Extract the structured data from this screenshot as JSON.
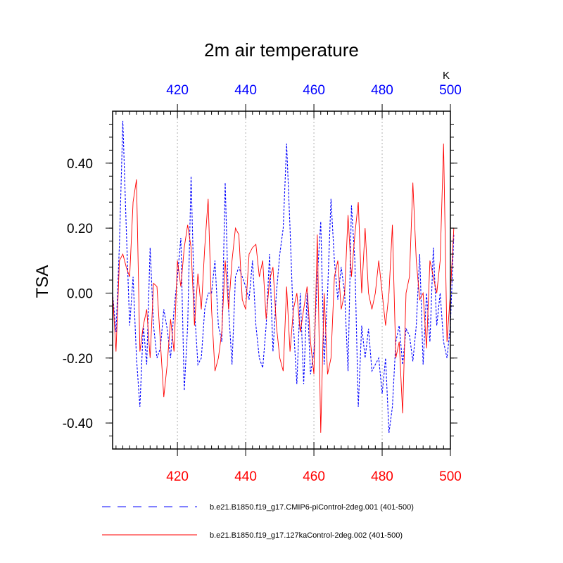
{
  "chart_data": {
    "type": "line",
    "title": "2m air temperature",
    "ylabel": "TSA",
    "units": "K",
    "xlim": [
      401,
      500
    ],
    "ylim": [
      -0.48,
      0.56
    ],
    "x_start": 401,
    "x_ticks": [
      420,
      440,
      460,
      480,
      500
    ],
    "x_tick_labels": [
      "420",
      "440",
      "460",
      "480",
      "500"
    ],
    "y_ticks": [
      -0.4,
      -0.2,
      0.0,
      0.2,
      0.4
    ],
    "y_tick_labels": [
      "-0.40",
      "-0.20",
      "0.00",
      "0.20",
      "0.40"
    ],
    "top_axis_color": "#0000ff",
    "bottom_axis_color": "#ff0000",
    "grid_color": "#b0b0b0",
    "series": [
      {
        "name": "b.e21.B1850.f19_g17.CMIP6-piControl-2deg.001 (401-500)",
        "color": "#0000ff",
        "dash": "dashed",
        "values": [
          0.0,
          -0.12,
          0.15,
          0.53,
          0.2,
          -0.1,
          0.05,
          -0.2,
          -0.35,
          -0.1,
          -0.22,
          0.14,
          -0.1,
          -0.2,
          -0.17,
          -0.05,
          -0.11,
          -0.2,
          -0.05,
          0.05,
          0.17,
          -0.3,
          -0.1,
          0.36,
          -0.05,
          -0.22,
          -0.2,
          -0.05,
          0.0,
          0.0,
          0.1,
          -0.1,
          -0.15,
          0.34,
          -0.05,
          -0.22,
          0.05,
          0.08,
          0.05,
          0.02,
          -0.02,
          0.1,
          -0.1,
          -0.2,
          -0.23,
          -0.1,
          0.12,
          -0.18,
          0.0,
          0.12,
          0.2,
          0.46,
          0.2,
          -0.1,
          -0.28,
          0.0,
          -0.28,
          0.0,
          -0.25,
          -0.18,
          0.05,
          0.22,
          -0.22,
          0.0,
          0.29,
          0.1,
          -0.02,
          0.08,
          0.0,
          -0.24,
          0.27,
          0.1,
          -0.35,
          -0.1,
          -0.2,
          -0.11,
          -0.24,
          -0.22,
          -0.2,
          -0.31,
          -0.2,
          -0.43,
          -0.35,
          -0.15,
          -0.1,
          -0.22,
          -0.11,
          -0.13,
          -0.21,
          -0.1,
          0.12,
          -0.22,
          0.0,
          -0.15,
          0.14,
          -0.1,
          0.0,
          -0.15,
          -0.2,
          -0.1,
          0.18
        ]
      },
      {
        "name": "b.e21.B1850.f19_g17.127kaControl-2deg.002 (401-500)",
        "color": "#ff0000",
        "dash": "solid",
        "values": [
          0.0,
          -0.18,
          0.1,
          0.12,
          0.08,
          0.05,
          0.28,
          0.35,
          -0.18,
          -0.1,
          -0.05,
          -0.2,
          0.03,
          0.02,
          -0.15,
          -0.32,
          -0.22,
          -0.08,
          -0.18,
          0.1,
          0.02,
          0.14,
          0.21,
          0.14,
          -0.1,
          0.06,
          -0.05,
          0.14,
          0.29,
          -0.05,
          -0.24,
          -0.2,
          -0.12,
          0.1,
          -0.05,
          0.1,
          0.2,
          0.18,
          -0.02,
          -0.05,
          0.12,
          0.14,
          0.15,
          0.05,
          0.1,
          -0.08,
          0.04,
          0.08,
          -0.1,
          -0.2,
          -0.24,
          0.02,
          -0.18,
          -0.05,
          0.0,
          -0.12,
          -0.05,
          0.02,
          -0.15,
          -0.25,
          0.18,
          -0.43,
          0.0,
          -0.25,
          -0.2,
          0.05,
          0.1,
          -0.05,
          0.0,
          0.24,
          0.05,
          0.18,
          0.28,
          0.0,
          0.2,
          0.0,
          -0.05,
          0.0,
          0.1,
          0.0,
          -0.1,
          0.0,
          0.21,
          -0.2,
          -0.15,
          -0.37,
          0.0,
          0.05,
          0.34,
          0.1,
          -0.02,
          0.0,
          -0.17,
          0.1,
          0.05,
          0.0,
          0.1,
          0.46,
          -0.15,
          0.0,
          0.2
        ]
      }
    ]
  }
}
